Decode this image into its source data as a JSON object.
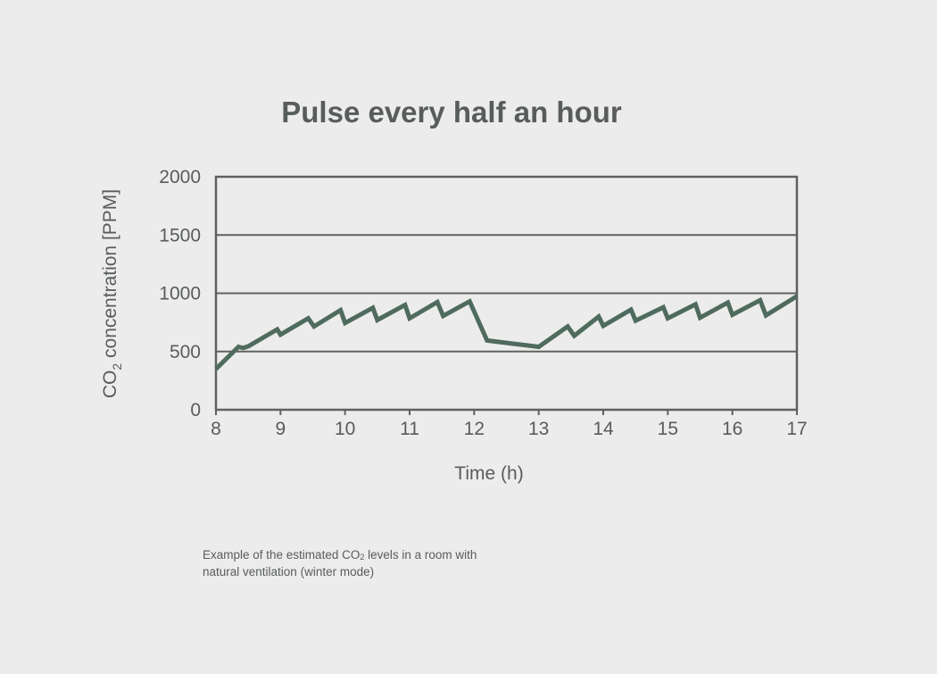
{
  "chart_data": {
    "type": "line",
    "title": "Pulse every half an hour",
    "xlabel": "Time (h)",
    "ylabel": {
      "prefix": "CO",
      "subscript": "2",
      "suffix": " concentration [PPM]"
    },
    "xlim": [
      8,
      17
    ],
    "ylim": [
      0,
      2000
    ],
    "x_ticks": [
      "8",
      "9",
      "10",
      "11",
      "12",
      "13",
      "14",
      "15",
      "16",
      "17"
    ],
    "y_ticks": [
      "0",
      "500",
      "1000",
      "1500",
      "2000"
    ],
    "grid": true,
    "series": [
      {
        "color": "#4f6b5e",
        "x": [
          8.0,
          8.35,
          8.42,
          8.5,
          8.95,
          9.0,
          9.43,
          9.52,
          9.93,
          10.0,
          10.43,
          10.5,
          10.93,
          11.0,
          11.43,
          11.52,
          11.93,
          12.2,
          13.0,
          13.45,
          13.55,
          13.93,
          14.0,
          14.43,
          14.5,
          14.93,
          15.0,
          15.43,
          15.5,
          15.93,
          16.0,
          16.43,
          16.52,
          17.0
        ],
        "y": [
          350,
          540,
          530,
          545,
          690,
          645,
          785,
          715,
          855,
          745,
          875,
          770,
          900,
          785,
          925,
          805,
          930,
          595,
          540,
          715,
          635,
          800,
          720,
          860,
          765,
          880,
          785,
          905,
          790,
          920,
          815,
          940,
          810,
          975
        ]
      }
    ]
  },
  "caption": {
    "line1_prefix": "Example of the estimated CO",
    "line1_sub": "2",
    "line1_suffix": " levels in a room with",
    "line2": "natural ventilation (winter mode)"
  }
}
